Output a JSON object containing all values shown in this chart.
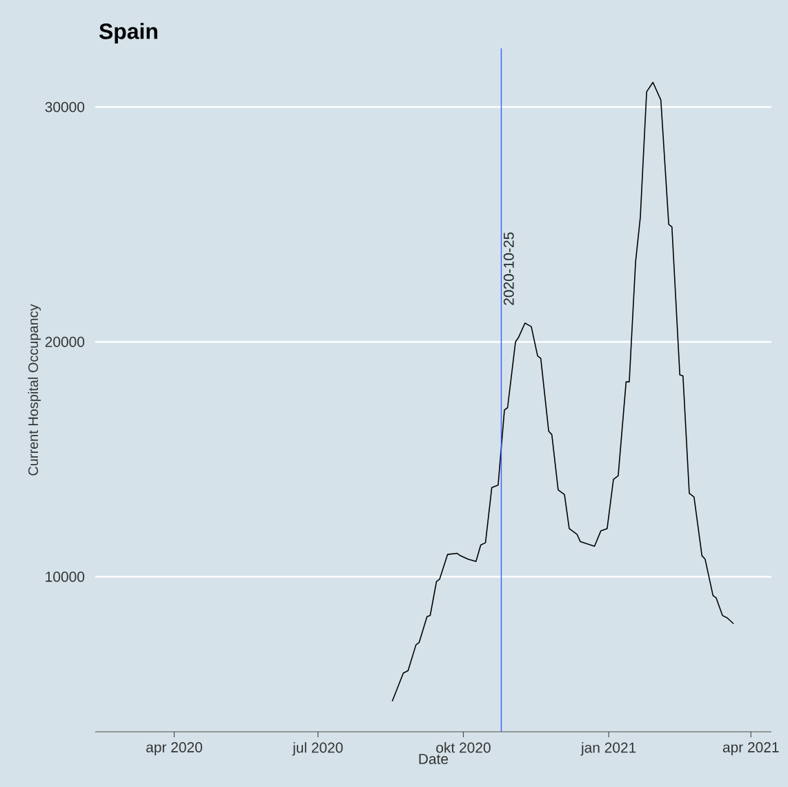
{
  "chart_data": {
    "type": "line",
    "title": "Spain",
    "xlabel": "Date",
    "ylabel": "Current Hospital Occupancy",
    "x": [
      "2020-08-17",
      "2020-08-24",
      "2020-08-27",
      "2020-09-01",
      "2020-09-03",
      "2020-09-08",
      "2020-09-10",
      "2020-09-14",
      "2020-09-16",
      "2020-09-21",
      "2020-09-27",
      "2020-09-29",
      "2020-10-04",
      "2020-10-09",
      "2020-10-12",
      "2020-10-15",
      "2020-10-19",
      "2020-10-23",
      "2020-10-27",
      "2020-10-29",
      "2020-11-03",
      "2020-11-05",
      "2020-11-09",
      "2020-11-13",
      "2020-11-17",
      "2020-11-19",
      "2020-11-24",
      "2020-11-26",
      "2020-11-30",
      "2020-12-04",
      "2020-12-07",
      "2020-12-12",
      "2020-12-14",
      "2020-12-23",
      "2020-12-27",
      "2020-12-31",
      "2021-01-04",
      "2021-01-07",
      "2021-01-12",
      "2021-01-14",
      "2021-01-18",
      "2021-01-21",
      "2021-01-25",
      "2021-01-29",
      "2021-01-31",
      "2021-02-03",
      "2021-02-08",
      "2021-02-10",
      "2021-02-15",
      "2021-02-17",
      "2021-02-21",
      "2021-02-24",
      "2021-03-01",
      "2021-03-03",
      "2021-03-08",
      "2021-03-10",
      "2021-03-14",
      "2021-03-17",
      "2021-03-21"
    ],
    "series": [
      {
        "color": "#000000",
        "values": [
          4700,
          5900,
          6000,
          7100,
          7200,
          8300,
          8350,
          9800,
          9900,
          10950,
          11000,
          10900,
          10750,
          10650,
          11350,
          11450,
          13800,
          13900,
          17100,
          17200,
          20000,
          20200,
          20800,
          20650,
          19400,
          19300,
          16200,
          16050,
          13700,
          13500,
          12050,
          11800,
          11500,
          11300,
          11950,
          12050,
          14150,
          14300,
          18300,
          18300,
          23400,
          25300,
          30650,
          31050,
          30750,
          30300,
          25000,
          24900,
          18600,
          18550,
          13550,
          13400,
          10900,
          10750,
          9200,
          9100,
          8350,
          8250,
          8000
        ]
      }
    ],
    "xlim": [
      "2020-02-11",
      "2021-04-14"
    ],
    "xticks": [
      {
        "value": "2020-04-01",
        "label": "apr 2020"
      },
      {
        "value": "2020-07-01",
        "label": "jul 2020"
      },
      {
        "value": "2020-10-01",
        "label": "okt 2020"
      },
      {
        "value": "2021-01-01",
        "label": "jan 2021"
      },
      {
        "value": "2021-04-01",
        "label": "apr 2021"
      }
    ],
    "ylim": [
      3400,
      32500
    ],
    "yticks": [
      10000,
      20000,
      30000
    ],
    "grid": "y",
    "ref_lines": [
      {
        "axis": "x",
        "value": "2020-10-25",
        "label": "2020-10-25",
        "color": "#3b5bff"
      }
    ]
  }
}
